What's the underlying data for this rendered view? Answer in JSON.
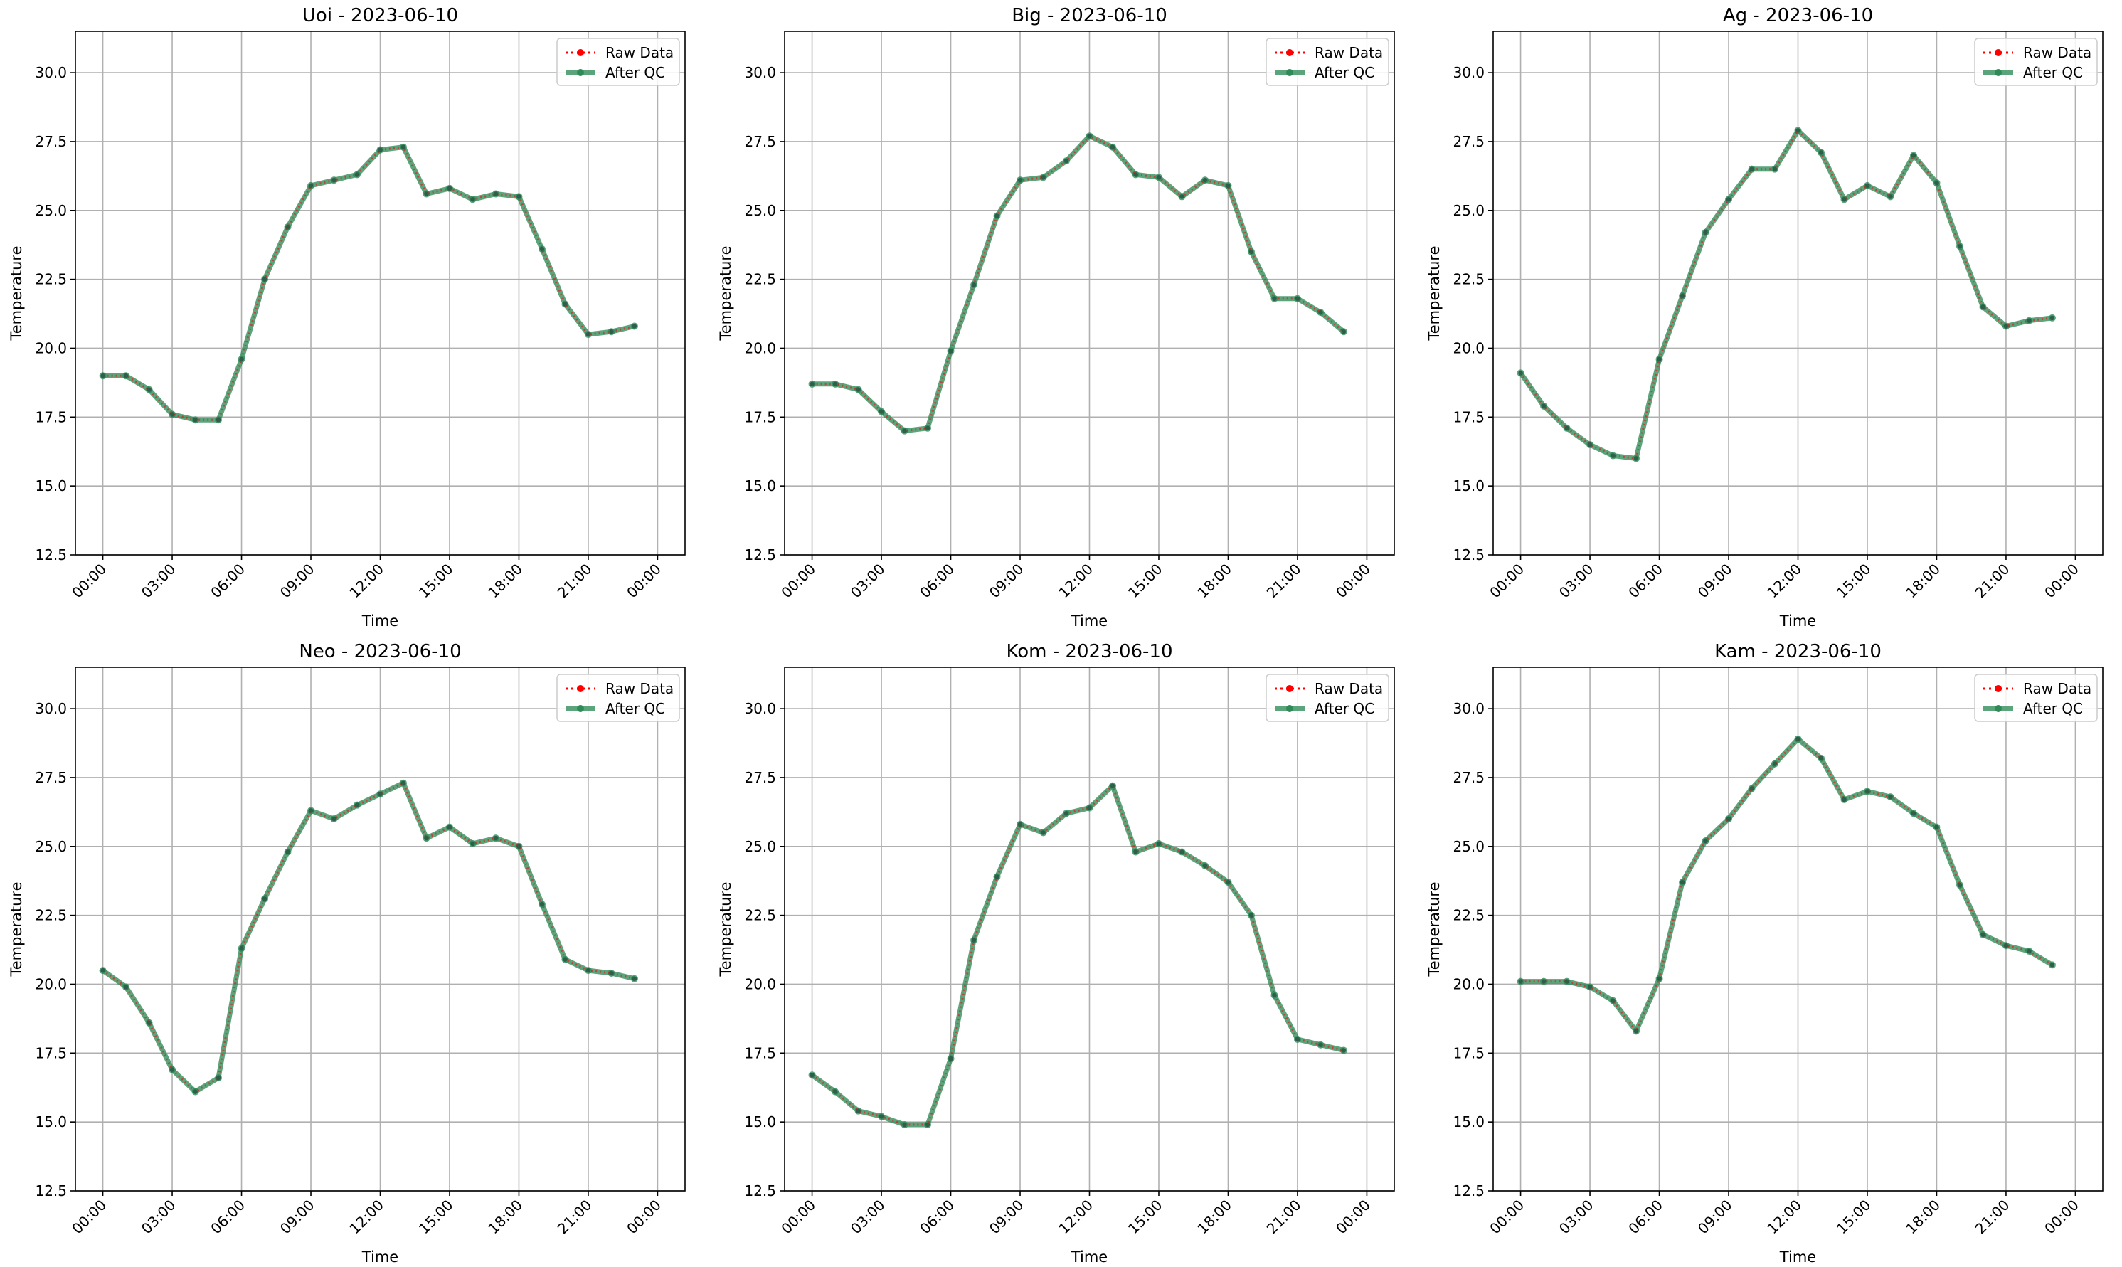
{
  "figure": {
    "background": "#ffffff"
  },
  "colors": {
    "raw": "#ff0000",
    "qc": "#2e8b57",
    "grid": "#b0b0b0"
  },
  "chart_data": [
    {
      "type": "line",
      "title": "Uoi - 2023-06-10",
      "xlabel": "Time",
      "ylabel": "Temperature",
      "xlim": [
        0,
        24
      ],
      "ylim": [
        12.5,
        31.5
      ],
      "xticks": [
        "00:00",
        "03:00",
        "06:00",
        "09:00",
        "12:00",
        "15:00",
        "18:00",
        "21:00",
        "00:00"
      ],
      "yticks": [
        "12.5",
        "15.0",
        "17.5",
        "20.0",
        "22.5",
        "25.0",
        "27.5",
        "30.0"
      ],
      "legend": "top-right",
      "grid": true,
      "x": [
        "00:00",
        "01:00",
        "02:00",
        "03:00",
        "04:00",
        "05:00",
        "06:00",
        "07:00",
        "08:00",
        "09:00",
        "10:00",
        "11:00",
        "12:00",
        "13:00",
        "14:00",
        "15:00",
        "16:00",
        "17:00",
        "18:00",
        "19:00",
        "20:00",
        "21:00",
        "22:00",
        "23:00"
      ],
      "series": [
        {
          "name": "Raw Data",
          "values": [
            19.0,
            19.0,
            18.5,
            17.6,
            17.4,
            17.4,
            19.6,
            22.5,
            24.4,
            25.9,
            26.1,
            26.3,
            27.2,
            27.3,
            25.6,
            25.8,
            25.4,
            25.6,
            25.5,
            23.6,
            21.6,
            20.5,
            20.6,
            20.8
          ]
        },
        {
          "name": "After QC",
          "values": [
            19.0,
            19.0,
            18.5,
            17.6,
            17.4,
            17.4,
            19.6,
            22.5,
            24.4,
            25.9,
            26.1,
            26.3,
            27.2,
            27.3,
            25.6,
            25.8,
            25.4,
            25.6,
            25.5,
            23.6,
            21.6,
            20.5,
            20.6,
            20.8
          ]
        }
      ]
    },
    {
      "type": "line",
      "title": "Big - 2023-06-10",
      "xlabel": "Time",
      "ylabel": "Temperature",
      "xlim": [
        0,
        24
      ],
      "ylim": [
        12.5,
        31.5
      ],
      "xticks": [
        "00:00",
        "03:00",
        "06:00",
        "09:00",
        "12:00",
        "15:00",
        "18:00",
        "21:00",
        "00:00"
      ],
      "yticks": [
        "12.5",
        "15.0",
        "17.5",
        "20.0",
        "22.5",
        "25.0",
        "27.5",
        "30.0"
      ],
      "legend": "top-right",
      "grid": true,
      "x": [
        "00:00",
        "01:00",
        "02:00",
        "03:00",
        "04:00",
        "05:00",
        "06:00",
        "07:00",
        "08:00",
        "09:00",
        "10:00",
        "11:00",
        "12:00",
        "13:00",
        "14:00",
        "15:00",
        "16:00",
        "17:00",
        "18:00",
        "19:00",
        "20:00",
        "21:00",
        "22:00",
        "23:00"
      ],
      "series": [
        {
          "name": "Raw Data",
          "values": [
            18.7,
            18.7,
            18.5,
            17.7,
            17.0,
            17.1,
            19.9,
            22.3,
            24.8,
            26.1,
            26.2,
            26.8,
            27.7,
            27.3,
            26.3,
            26.2,
            25.5,
            26.1,
            25.9,
            23.5,
            21.8,
            21.8,
            21.3,
            20.6
          ]
        },
        {
          "name": "After QC",
          "values": [
            18.7,
            18.7,
            18.5,
            17.7,
            17.0,
            17.1,
            19.9,
            22.3,
            24.8,
            26.1,
            26.2,
            26.8,
            27.7,
            27.3,
            26.3,
            26.2,
            25.5,
            26.1,
            25.9,
            23.5,
            21.8,
            21.8,
            21.3,
            20.6
          ]
        }
      ]
    },
    {
      "type": "line",
      "title": "Ag - 2023-06-10",
      "xlabel": "Time",
      "ylabel": "Temperature",
      "xlim": [
        0,
        24
      ],
      "ylim": [
        12.5,
        31.5
      ],
      "xticks": [
        "00:00",
        "03:00",
        "06:00",
        "09:00",
        "12:00",
        "15:00",
        "18:00",
        "21:00",
        "00:00"
      ],
      "yticks": [
        "12.5",
        "15.0",
        "17.5",
        "20.0",
        "22.5",
        "25.0",
        "27.5",
        "30.0"
      ],
      "legend": "top-right",
      "grid": true,
      "x": [
        "00:00",
        "01:00",
        "02:00",
        "03:00",
        "04:00",
        "05:00",
        "06:00",
        "07:00",
        "08:00",
        "09:00",
        "10:00",
        "11:00",
        "12:00",
        "13:00",
        "14:00",
        "15:00",
        "16:00",
        "17:00",
        "18:00",
        "19:00",
        "20:00",
        "21:00",
        "22:00",
        "23:00"
      ],
      "series": [
        {
          "name": "Raw Data",
          "values": [
            19.1,
            17.9,
            17.1,
            16.5,
            16.1,
            16.0,
            19.6,
            21.9,
            24.2,
            25.4,
            26.5,
            26.5,
            27.9,
            27.1,
            25.4,
            25.9,
            25.5,
            27.0,
            26.0,
            23.7,
            21.5,
            20.8,
            21.0,
            21.1
          ]
        },
        {
          "name": "After QC",
          "values": [
            19.1,
            17.9,
            17.1,
            16.5,
            16.1,
            16.0,
            19.6,
            21.9,
            24.2,
            25.4,
            26.5,
            26.5,
            27.9,
            27.1,
            25.4,
            25.9,
            25.5,
            27.0,
            26.0,
            23.7,
            21.5,
            20.8,
            21.0,
            21.1
          ]
        }
      ]
    },
    {
      "type": "line",
      "title": "Neo - 2023-06-10",
      "xlabel": "Time",
      "ylabel": "Temperature",
      "xlim": [
        0,
        24
      ],
      "ylim": [
        12.5,
        31.5
      ],
      "xticks": [
        "00:00",
        "03:00",
        "06:00",
        "09:00",
        "12:00",
        "15:00",
        "18:00",
        "21:00",
        "00:00"
      ],
      "yticks": [
        "12.5",
        "15.0",
        "17.5",
        "20.0",
        "22.5",
        "25.0",
        "27.5",
        "30.0"
      ],
      "legend": "top-right",
      "grid": true,
      "x": [
        "00:00",
        "01:00",
        "02:00",
        "03:00",
        "04:00",
        "05:00",
        "06:00",
        "07:00",
        "08:00",
        "09:00",
        "10:00",
        "11:00",
        "12:00",
        "13:00",
        "14:00",
        "15:00",
        "16:00",
        "17:00",
        "18:00",
        "19:00",
        "20:00",
        "21:00",
        "22:00",
        "23:00"
      ],
      "series": [
        {
          "name": "Raw Data",
          "values": [
            20.5,
            19.9,
            18.6,
            16.9,
            16.1,
            16.6,
            21.3,
            23.1,
            24.8,
            26.3,
            26.0,
            26.5,
            26.9,
            27.3,
            25.3,
            25.7,
            25.1,
            25.3,
            25.0,
            22.9,
            20.9,
            20.5,
            20.4,
            20.2
          ]
        },
        {
          "name": "After QC",
          "values": [
            20.5,
            19.9,
            18.6,
            16.9,
            16.1,
            16.6,
            21.3,
            23.1,
            24.8,
            26.3,
            26.0,
            26.5,
            26.9,
            27.3,
            25.3,
            25.7,
            25.1,
            25.3,
            25.0,
            22.9,
            20.9,
            20.5,
            20.4,
            20.2
          ]
        }
      ]
    },
    {
      "type": "line",
      "title": "Kom - 2023-06-10",
      "xlabel": "Time",
      "ylabel": "Temperature",
      "xlim": [
        0,
        24
      ],
      "ylim": [
        12.5,
        31.5
      ],
      "xticks": [
        "00:00",
        "03:00",
        "06:00",
        "09:00",
        "12:00",
        "15:00",
        "18:00",
        "21:00",
        "00:00"
      ],
      "yticks": [
        "12.5",
        "15.0",
        "17.5",
        "20.0",
        "22.5",
        "25.0",
        "27.5",
        "30.0"
      ],
      "legend": "top-right",
      "grid": true,
      "x": [
        "00:00",
        "01:00",
        "02:00",
        "03:00",
        "04:00",
        "05:00",
        "06:00",
        "07:00",
        "08:00",
        "09:00",
        "10:00",
        "11:00",
        "12:00",
        "13:00",
        "14:00",
        "15:00",
        "16:00",
        "17:00",
        "18:00",
        "19:00",
        "20:00",
        "21:00",
        "22:00",
        "23:00"
      ],
      "series": [
        {
          "name": "Raw Data",
          "values": [
            16.7,
            16.1,
            15.4,
            15.2,
            14.9,
            14.9,
            17.3,
            21.6,
            23.9,
            25.8,
            25.5,
            26.2,
            26.4,
            27.2,
            24.8,
            25.1,
            24.8,
            24.3,
            23.7,
            22.5,
            19.6,
            18.0,
            17.8,
            17.6
          ]
        },
        {
          "name": "After QC",
          "values": [
            16.7,
            16.1,
            15.4,
            15.2,
            14.9,
            14.9,
            17.3,
            21.6,
            23.9,
            25.8,
            25.5,
            26.2,
            26.4,
            27.2,
            24.8,
            25.1,
            24.8,
            24.3,
            23.7,
            22.5,
            19.6,
            18.0,
            17.8,
            17.6
          ]
        }
      ]
    },
    {
      "type": "line",
      "title": "Kam - 2023-06-10",
      "xlabel": "Time",
      "ylabel": "Temperature",
      "xlim": [
        0,
        24
      ],
      "ylim": [
        12.5,
        31.5
      ],
      "xticks": [
        "00:00",
        "03:00",
        "06:00",
        "09:00",
        "12:00",
        "15:00",
        "18:00",
        "21:00",
        "00:00"
      ],
      "yticks": [
        "12.5",
        "15.0",
        "17.5",
        "20.0",
        "22.5",
        "25.0",
        "27.5",
        "30.0"
      ],
      "legend": "top-right",
      "grid": true,
      "x": [
        "00:00",
        "01:00",
        "02:00",
        "03:00",
        "04:00",
        "05:00",
        "06:00",
        "07:00",
        "08:00",
        "09:00",
        "10:00",
        "11:00",
        "12:00",
        "13:00",
        "14:00",
        "15:00",
        "16:00",
        "17:00",
        "18:00",
        "19:00",
        "20:00",
        "21:00",
        "22:00",
        "23:00"
      ],
      "series": [
        {
          "name": "Raw Data",
          "values": [
            20.1,
            20.1,
            20.1,
            19.9,
            19.4,
            18.3,
            20.2,
            23.7,
            25.2,
            26.0,
            27.1,
            28.0,
            28.9,
            28.2,
            26.7,
            27.0,
            26.8,
            26.2,
            25.7,
            23.6,
            21.8,
            21.4,
            21.2,
            20.7
          ]
        },
        {
          "name": "After QC",
          "values": [
            20.1,
            20.1,
            20.1,
            19.9,
            19.4,
            18.3,
            20.2,
            23.7,
            25.2,
            26.0,
            27.1,
            28.0,
            28.9,
            28.2,
            26.7,
            27.0,
            26.8,
            26.2,
            25.7,
            23.6,
            21.8,
            21.4,
            21.2,
            20.7
          ]
        }
      ]
    }
  ]
}
